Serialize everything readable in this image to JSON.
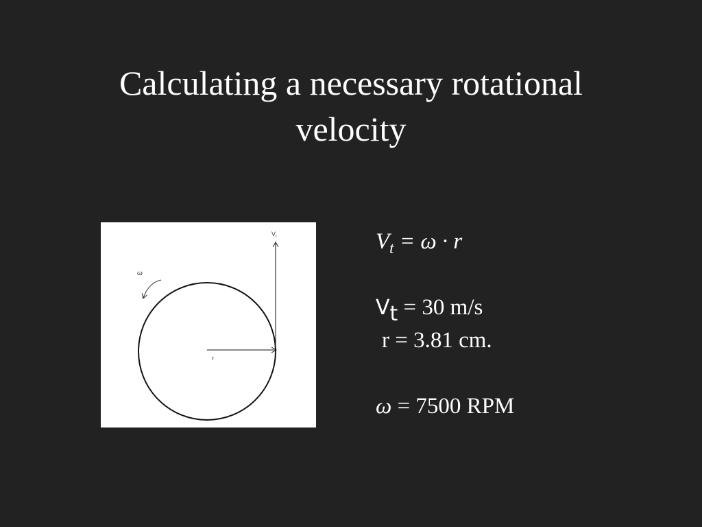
{
  "title": "Calculating a necessary rotational velocity",
  "diagram": {
    "omega_label": "ω",
    "velocity_label": "V",
    "velocity_sub": "t",
    "radius_label": "r"
  },
  "equation": {
    "symbol": "V",
    "sub": "t",
    "rest": "= ω · r"
  },
  "givens": [
    {
      "symbol": "V",
      "sub": "t",
      "text": "= 30 m/s"
    },
    {
      "text": "r = 3.81 cm."
    }
  ],
  "result": {
    "symbol": "ω",
    "text": "= 7500 RPM"
  }
}
